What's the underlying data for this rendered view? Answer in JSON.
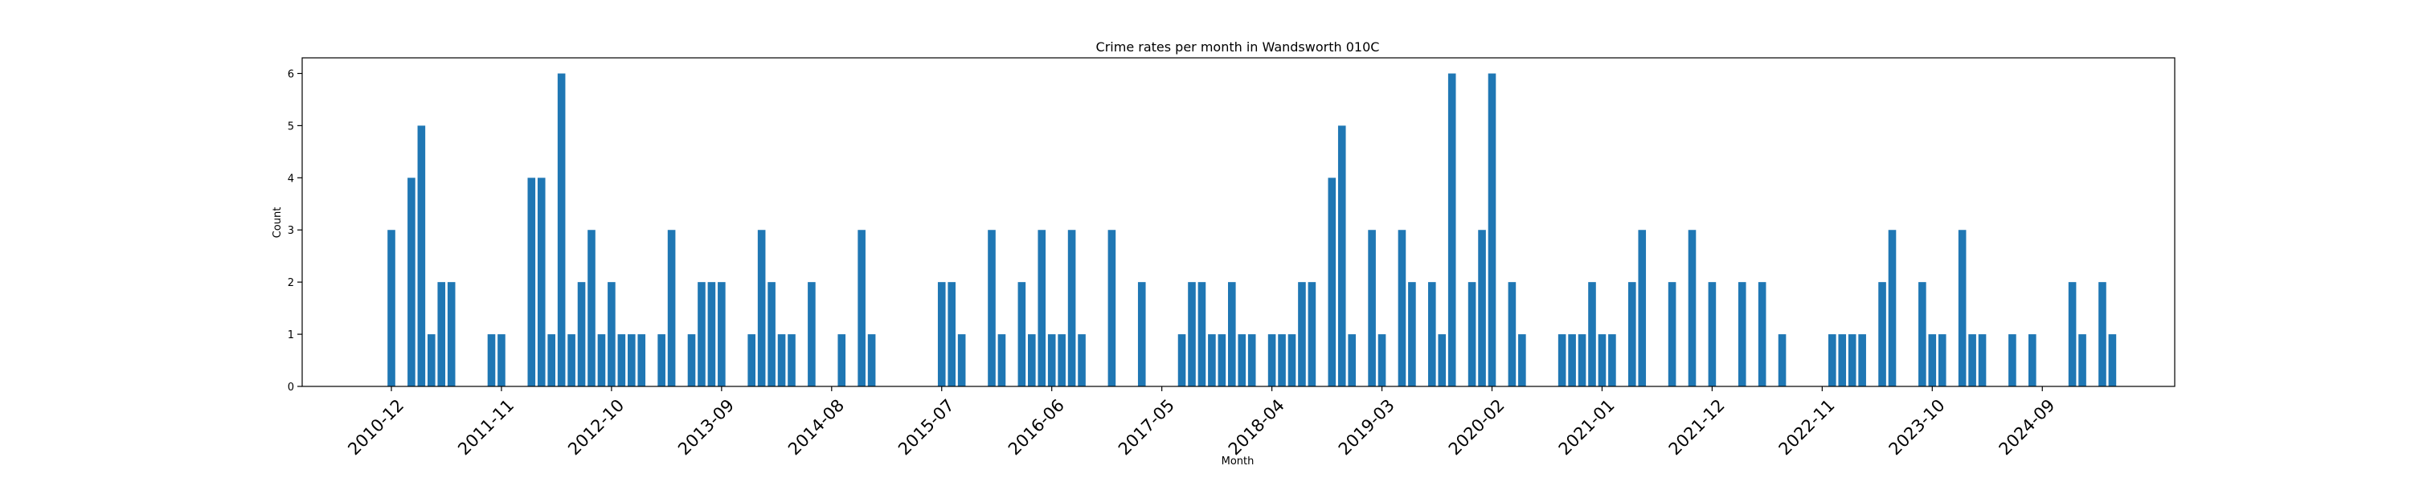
{
  "chart_data": {
    "type": "bar",
    "title": "Crime rates per month in Wandsworth 010C",
    "xlabel": "Month",
    "ylabel": "Count",
    "ylim": [
      0,
      6.3
    ],
    "yticks": [
      0,
      1,
      2,
      3,
      4,
      5,
      6
    ],
    "x_start": "2010-12",
    "tick_every": 11,
    "xtick_labels": [
      "2010-12",
      "2011-11",
      "2012-10",
      "2013-09",
      "2014-08",
      "2015-07",
      "2016-06",
      "2017-05",
      "2018-04",
      "2019-03",
      "2020-02",
      "2021-01",
      "2021-12",
      "2022-11",
      "2023-10",
      "2024-09"
    ],
    "color": "#1f77b4",
    "months": [
      "2010-12",
      "2011-01",
      "2011-02",
      "2011-03",
      "2011-04",
      "2011-05",
      "2011-06",
      "2011-07",
      "2011-08",
      "2011-09",
      "2011-10",
      "2011-11",
      "2011-12",
      "2012-01",
      "2012-02",
      "2012-03",
      "2012-04",
      "2012-05",
      "2012-06",
      "2012-07",
      "2012-08",
      "2012-09",
      "2012-10",
      "2012-11",
      "2012-12",
      "2013-01",
      "2013-02",
      "2013-03",
      "2013-04",
      "2013-05",
      "2013-06",
      "2013-07",
      "2013-08",
      "2013-09",
      "2013-10",
      "2013-11",
      "2013-12",
      "2014-01",
      "2014-02",
      "2014-03",
      "2014-04",
      "2014-05",
      "2014-06",
      "2014-07",
      "2014-08",
      "2014-09",
      "2014-10",
      "2014-11",
      "2014-12",
      "2015-01",
      "2015-02",
      "2015-03",
      "2015-04",
      "2015-05",
      "2015-06",
      "2015-07",
      "2015-08",
      "2015-09",
      "2015-10",
      "2015-11",
      "2015-12",
      "2016-01",
      "2016-02",
      "2016-03",
      "2016-04",
      "2016-05",
      "2016-06",
      "2016-07",
      "2016-08",
      "2016-09",
      "2016-10",
      "2016-11",
      "2016-12",
      "2017-01",
      "2017-02",
      "2017-03",
      "2017-04",
      "2017-05",
      "2017-06",
      "2017-07",
      "2017-08",
      "2017-09",
      "2017-10",
      "2017-11",
      "2017-12",
      "2018-01",
      "2018-02",
      "2018-03",
      "2018-04",
      "2018-05",
      "2018-06",
      "2018-07",
      "2018-08",
      "2018-09",
      "2018-10",
      "2018-11",
      "2018-12",
      "2019-01",
      "2019-02",
      "2019-03",
      "2019-04",
      "2019-05",
      "2019-06",
      "2019-07",
      "2019-08",
      "2019-09",
      "2019-10",
      "2019-11",
      "2019-12",
      "2020-01",
      "2020-02",
      "2020-03",
      "2020-04",
      "2020-05",
      "2020-06",
      "2020-07",
      "2020-08",
      "2020-09",
      "2020-10",
      "2020-11",
      "2020-12",
      "2021-01",
      "2021-02",
      "2021-03",
      "2021-04",
      "2021-05",
      "2021-06",
      "2021-07",
      "2021-08",
      "2021-09",
      "2021-10",
      "2021-11",
      "2021-12",
      "2022-01",
      "2022-02",
      "2022-03",
      "2022-04",
      "2022-05",
      "2022-06",
      "2022-07",
      "2022-08",
      "2022-09",
      "2022-10",
      "2022-11",
      "2022-12",
      "2023-01",
      "2023-02",
      "2023-03",
      "2023-04",
      "2023-05",
      "2023-06",
      "2023-07",
      "2023-08",
      "2023-09",
      "2023-10",
      "2023-11",
      "2023-12",
      "2024-01",
      "2024-02",
      "2024-03",
      "2024-04",
      "2024-05",
      "2024-06",
      "2024-07",
      "2024-08",
      "2024-09",
      "2024-10",
      "2024-11",
      "2024-12",
      "2025-01",
      "2025-02",
      "2025-03",
      "2025-04"
    ],
    "values": [
      3,
      0,
      4,
      5,
      1,
      2,
      2,
      0,
      0,
      0,
      1,
      1,
      0,
      0,
      4,
      4,
      1,
      6,
      1,
      2,
      3,
      1,
      2,
      1,
      1,
      1,
      0,
      1,
      3,
      0,
      1,
      2,
      2,
      2,
      0,
      0,
      1,
      3,
      2,
      1,
      1,
      0,
      2,
      0,
      0,
      1,
      0,
      3,
      1,
      0,
      0,
      0,
      0,
      0,
      0,
      2,
      2,
      1,
      0,
      0,
      3,
      1,
      0,
      2,
      1,
      3,
      1,
      1,
      3,
      1,
      0,
      0,
      3,
      0,
      0,
      2,
      0,
      0,
      0,
      1,
      2,
      2,
      1,
      1,
      2,
      1,
      1,
      0,
      1,
      1,
      1,
      2,
      2,
      0,
      4,
      5,
      1,
      0,
      3,
      1,
      0,
      3,
      2,
      0,
      2,
      1,
      6,
      0,
      2,
      3,
      6,
      0,
      2,
      1,
      0,
      0,
      0,
      1,
      1,
      1,
      2,
      1,
      1,
      0,
      2,
      3,
      0,
      0,
      2,
      0,
      3,
      0,
      2,
      0,
      0,
      2,
      0,
      2,
      0,
      1,
      0,
      0,
      0,
      0,
      1,
      1,
      1,
      1,
      0,
      2,
      3,
      0,
      0,
      2,
      1,
      1,
      0,
      3,
      1,
      1,
      0,
      0,
      1,
      0,
      1,
      0,
      0,
      0,
      2,
      1,
      0,
      2,
      1
    ]
  }
}
